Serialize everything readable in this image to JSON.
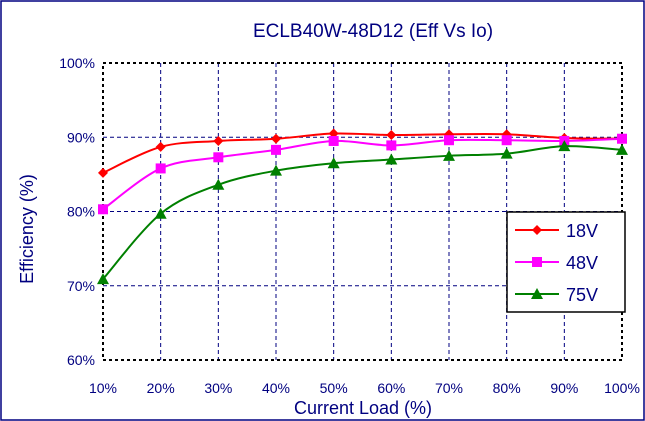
{
  "chart_data": {
    "type": "line",
    "title": "ECLB40W-48D12  (Eff Vs Io)",
    "xlabel": "Current Load (%)",
    "ylabel": "Efficiency (%)",
    "x": [
      "10%",
      "20%",
      "30%",
      "40%",
      "50%",
      "60%",
      "70%",
      "80%",
      "90%",
      "100%"
    ],
    "yticks": [
      "60%",
      "70%",
      "80%",
      "90%",
      "100%"
    ],
    "ylim": [
      60,
      100
    ],
    "grid": true,
    "legend_position": "right",
    "series": [
      {
        "name": "18V",
        "color": "#ff0000",
        "marker": "diamond",
        "values": [
          85.2,
          88.7,
          89.5,
          89.8,
          90.5,
          90.3,
          90.4,
          90.4,
          89.9,
          89.8
        ]
      },
      {
        "name": "48V",
        "color": "#ff00ff",
        "marker": "square",
        "values": [
          80.3,
          85.8,
          87.3,
          88.3,
          89.5,
          88.9,
          89.6,
          89.6,
          89.5,
          89.8
        ]
      },
      {
        "name": "75V",
        "color": "#008000",
        "marker": "triangle",
        "values": [
          70.9,
          79.7,
          83.6,
          85.5,
          86.5,
          87.0,
          87.5,
          87.8,
          88.8,
          88.3
        ]
      }
    ]
  }
}
